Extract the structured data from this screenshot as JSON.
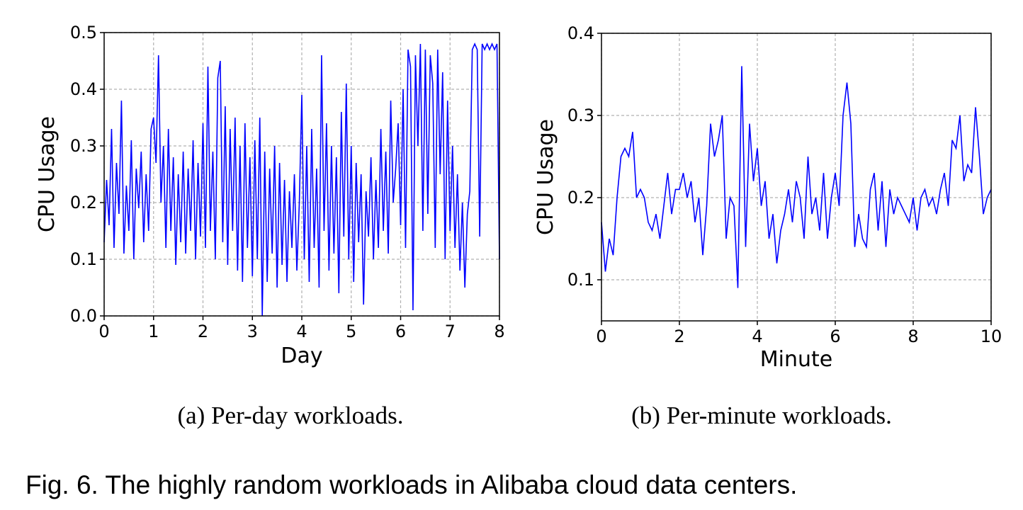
{
  "chart_data": [
    {
      "type": "line",
      "xlabel": "Day",
      "ylabel": "CPU Usage",
      "caption": "(a) Per-day workloads.",
      "xlim": [
        0,
        8
      ],
      "ylim": [
        0,
        0.5
      ],
      "xticks": [
        0,
        1,
        2,
        3,
        4,
        5,
        6,
        7,
        8
      ],
      "yticks": [
        {
          "value": 0,
          "label": "0.0"
        },
        0.1,
        0.2,
        0.3,
        0.4,
        0.5
      ],
      "grid": true,
      "x": [
        0,
        0.05,
        0.1,
        0.15,
        0.2,
        0.25,
        0.3,
        0.35,
        0.4,
        0.45,
        0.5,
        0.55,
        0.6,
        0.65,
        0.7,
        0.75,
        0.8,
        0.85,
        0.9,
        0.95,
        1,
        1.05,
        1.1,
        1.15,
        1.2,
        1.25,
        1.3,
        1.35,
        1.4,
        1.45,
        1.5,
        1.55,
        1.6,
        1.65,
        1.7,
        1.75,
        1.8,
        1.85,
        1.9,
        1.95,
        2,
        2.05,
        2.1,
        2.15,
        2.2,
        2.25,
        2.3,
        2.35,
        2.4,
        2.45,
        2.5,
        2.55,
        2.6,
        2.65,
        2.7,
        2.75,
        2.8,
        2.85,
        2.9,
        2.95,
        3,
        3.05,
        3.1,
        3.15,
        3.2,
        3.25,
        3.3,
        3.35,
        3.4,
        3.45,
        3.5,
        3.55,
        3.6,
        3.65,
        3.7,
        3.75,
        3.8,
        3.85,
        3.9,
        3.95,
        4,
        4.05,
        4.1,
        4.15,
        4.2,
        4.25,
        4.3,
        4.35,
        4.4,
        4.45,
        4.5,
        4.55,
        4.6,
        4.65,
        4.7,
        4.75,
        4.8,
        4.85,
        4.9,
        4.95,
        5,
        5.05,
        5.1,
        5.15,
        5.2,
        5.25,
        5.3,
        5.35,
        5.4,
        5.45,
        5.5,
        5.55,
        5.6,
        5.65,
        5.7,
        5.75,
        5.8,
        5.85,
        5.9,
        5.95,
        6,
        6.05,
        6.1,
        6.15,
        6.2,
        6.25,
        6.3,
        6.35,
        6.4,
        6.45,
        6.5,
        6.55,
        6.6,
        6.65,
        6.7,
        6.75,
        6.8,
        6.85,
        6.9,
        6.95,
        7,
        7.05,
        7.1,
        7.15,
        7.2,
        7.25,
        7.3,
        7.35,
        7.4,
        7.45,
        7.5,
        7.55,
        7.6,
        7.65,
        7.7,
        7.75,
        7.8,
        7.85,
        7.9,
        7.95,
        8
      ],
      "series": [
        {
          "color": "#0000ff",
          "values": [
            0.13,
            0.24,
            0.16,
            0.33,
            0.12,
            0.27,
            0.18,
            0.38,
            0.11,
            0.23,
            0.15,
            0.31,
            0.1,
            0.26,
            0.19,
            0.29,
            0.13,
            0.25,
            0.15,
            0.33,
            0.35,
            0.27,
            0.46,
            0.2,
            0.3,
            0.12,
            0.33,
            0.15,
            0.28,
            0.09,
            0.25,
            0.13,
            0.29,
            0.11,
            0.26,
            0.15,
            0.31,
            0.1,
            0.27,
            0.14,
            0.34,
            0.12,
            0.44,
            0.15,
            0.29,
            0.1,
            0.42,
            0.45,
            0.13,
            0.37,
            0.09,
            0.33,
            0.15,
            0.35,
            0.08,
            0.3,
            0.06,
            0.34,
            0.12,
            0.28,
            0.07,
            0.31,
            0.1,
            0.35,
            0.0,
            0.29,
            0.06,
            0.26,
            0.11,
            0.3,
            0.05,
            0.27,
            0.09,
            0.24,
            0.06,
            0.22,
            0.12,
            0.25,
            0.08,
            0.2,
            0.39,
            0.1,
            0.3,
            0.06,
            0.33,
            0.12,
            0.26,
            0.05,
            0.46,
            0.15,
            0.34,
            0.08,
            0.3,
            0.11,
            0.28,
            0.04,
            0.36,
            0.14,
            0.41,
            0.1,
            0.3,
            0.06,
            0.27,
            0.13,
            0.25,
            0.02,
            0.22,
            0.14,
            0.28,
            0.1,
            0.24,
            0.12,
            0.33,
            0.15,
            0.29,
            0.11,
            0.38,
            0.2,
            0.26,
            0.34,
            0.16,
            0.4,
            0.12,
            0.47,
            0.44,
            0.01,
            0.46,
            0.3,
            0.48,
            0.15,
            0.47,
            0.18,
            0.46,
            0.41,
            0.12,
            0.47,
            0.25,
            0.43,
            0.1,
            0.38,
            0.15,
            0.3,
            0.12,
            0.25,
            0.08,
            0.2,
            0.05,
            0.18,
            0.22,
            0.47,
            0.48,
            0.47,
            0.14,
            0.48,
            0.47,
            0.48,
            0.47,
            0.48,
            0.47,
            0.48,
            0.1
          ]
        }
      ]
    },
    {
      "type": "line",
      "xlabel": "Minute",
      "ylabel": "CPU Usage",
      "caption": "(b) Per-minute workloads.",
      "xlim": [
        0,
        10
      ],
      "ylim": [
        0.05,
        0.4
      ],
      "xticks": [
        0,
        2,
        4,
        6,
        8,
        10
      ],
      "yticks": [
        0.1,
        0.2,
        0.3,
        0.4
      ],
      "grid": true,
      "x": [
        0,
        0.1,
        0.2,
        0.3,
        0.4,
        0.5,
        0.6,
        0.7,
        0.8,
        0.9,
        1,
        1.1,
        1.2,
        1.3,
        1.4,
        1.5,
        1.6,
        1.7,
        1.8,
        1.9,
        2,
        2.1,
        2.2,
        2.3,
        2.4,
        2.5,
        2.6,
        2.7,
        2.8,
        2.9,
        3,
        3.1,
        3.2,
        3.3,
        3.4,
        3.5,
        3.6,
        3.7,
        3.8,
        3.9,
        4,
        4.1,
        4.2,
        4.3,
        4.4,
        4.5,
        4.6,
        4.7,
        4.8,
        4.9,
        5,
        5.1,
        5.2,
        5.3,
        5.4,
        5.5,
        5.6,
        5.7,
        5.8,
        5.9,
        6,
        6.1,
        6.2,
        6.3,
        6.4,
        6.5,
        6.6,
        6.7,
        6.8,
        6.9,
        7,
        7.1,
        7.2,
        7.3,
        7.4,
        7.5,
        7.6,
        7.7,
        7.8,
        7.9,
        8,
        8.1,
        8.2,
        8.3,
        8.4,
        8.5,
        8.6,
        8.7,
        8.8,
        8.9,
        9,
        9.1,
        9.2,
        9.3,
        9.4,
        9.5,
        9.6,
        9.7,
        9.8,
        9.9,
        10
      ],
      "series": [
        {
          "color": "#0000ff",
          "values": [
            0.17,
            0.11,
            0.15,
            0.13,
            0.2,
            0.25,
            0.26,
            0.25,
            0.28,
            0.2,
            0.21,
            0.2,
            0.17,
            0.16,
            0.18,
            0.15,
            0.19,
            0.23,
            0.18,
            0.21,
            0.21,
            0.23,
            0.2,
            0.22,
            0.17,
            0.2,
            0.13,
            0.19,
            0.29,
            0.25,
            0.27,
            0.3,
            0.15,
            0.2,
            0.19,
            0.09,
            0.36,
            0.14,
            0.29,
            0.22,
            0.26,
            0.19,
            0.22,
            0.15,
            0.18,
            0.12,
            0.16,
            0.18,
            0.21,
            0.17,
            0.22,
            0.2,
            0.15,
            0.25,
            0.18,
            0.2,
            0.16,
            0.23,
            0.15,
            0.2,
            0.23,
            0.19,
            0.3,
            0.34,
            0.29,
            0.14,
            0.18,
            0.15,
            0.14,
            0.21,
            0.23,
            0.16,
            0.22,
            0.14,
            0.21,
            0.18,
            0.2,
            0.19,
            0.18,
            0.17,
            0.2,
            0.16,
            0.2,
            0.21,
            0.19,
            0.2,
            0.18,
            0.21,
            0.23,
            0.19,
            0.27,
            0.26,
            0.3,
            0.22,
            0.24,
            0.23,
            0.31,
            0.25,
            0.18,
            0.2,
            0.21
          ]
        }
      ]
    }
  ],
  "figure_caption": "Fig. 6. The highly random workloads in Alibaba cloud data centers."
}
